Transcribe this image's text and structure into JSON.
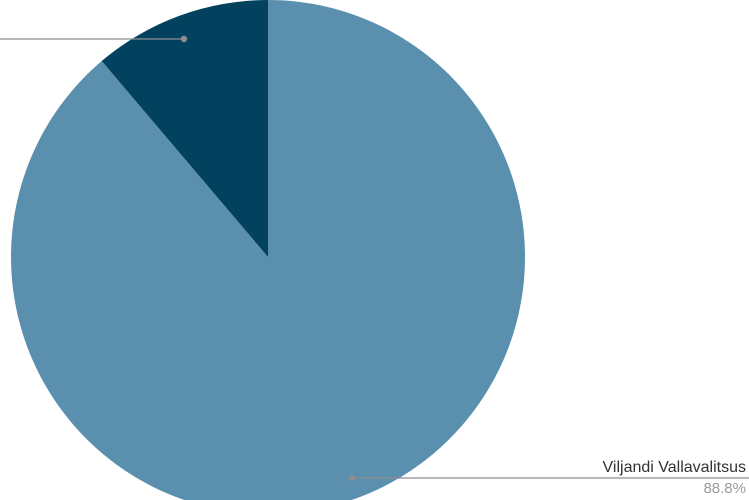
{
  "chart_data": {
    "type": "pie",
    "slices": [
      {
        "label": "Viljandi Vallavalitsus",
        "value": 88.8,
        "percent_label": "88.8%",
        "color": "#5a90ae"
      },
      {
        "label": "",
        "value": 11.2,
        "percent_label": "",
        "color": "#02425e"
      }
    ],
    "start_direction": "top",
    "direction": "clockwise",
    "legend": "none"
  },
  "colors": {
    "background": "#ffffff",
    "leader_line": "#8e8e8e"
  }
}
